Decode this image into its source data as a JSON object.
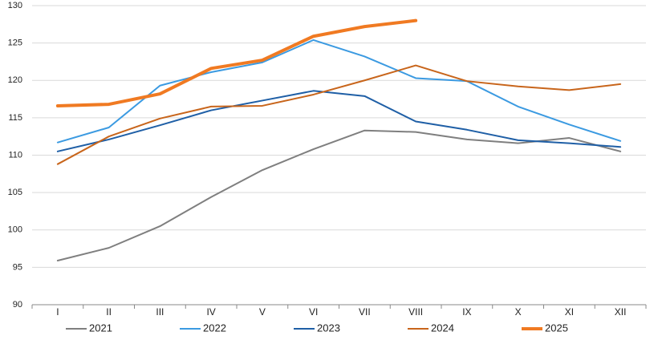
{
  "chart_data": {
    "type": "line",
    "categories": [
      "I",
      "II",
      "III",
      "IV",
      "V",
      "VI",
      "VII",
      "VIII",
      "IX",
      "X",
      "XI",
      "XII"
    ],
    "series": [
      {
        "name": "2021",
        "color": "#7f7f7f",
        "line_width": 2,
        "values": [
          95.9,
          97.6,
          100.5,
          104.4,
          108.0,
          110.8,
          113.3,
          113.1,
          112.1,
          111.6,
          112.3,
          110.5
        ]
      },
      {
        "name": "2022",
        "color": "#3b9ae1",
        "line_width": 2,
        "values": [
          111.7,
          113.7,
          119.3,
          121.1,
          122.4,
          125.4,
          123.2,
          120.3,
          119.9,
          116.5,
          114.1,
          111.9
        ]
      },
      {
        "name": "2023",
        "color": "#1f5fa6",
        "line_width": 2,
        "values": [
          110.5,
          112.1,
          114.0,
          116.0,
          117.3,
          118.6,
          117.9,
          114.5,
          113.4,
          112.0,
          111.6,
          111.1
        ]
      },
      {
        "name": "2024",
        "color": "#c8651b",
        "line_width": 2,
        "values": [
          108.8,
          112.5,
          114.9,
          116.5,
          116.6,
          118.1,
          120.0,
          122.0,
          119.9,
          119.2,
          118.7,
          119.5
        ]
      },
      {
        "name": "2025",
        "color": "#f07a22",
        "line_width": 4,
        "values": [
          116.6,
          116.8,
          118.2,
          121.6,
          122.7,
          125.9,
          127.2,
          128.0,
          null,
          null,
          null,
          null
        ]
      }
    ],
    "ylim": [
      90,
      130
    ],
    "yticks": [
      90,
      95,
      100,
      105,
      110,
      115,
      120,
      125,
      130
    ],
    "grid": true,
    "legend": "bottom"
  }
}
